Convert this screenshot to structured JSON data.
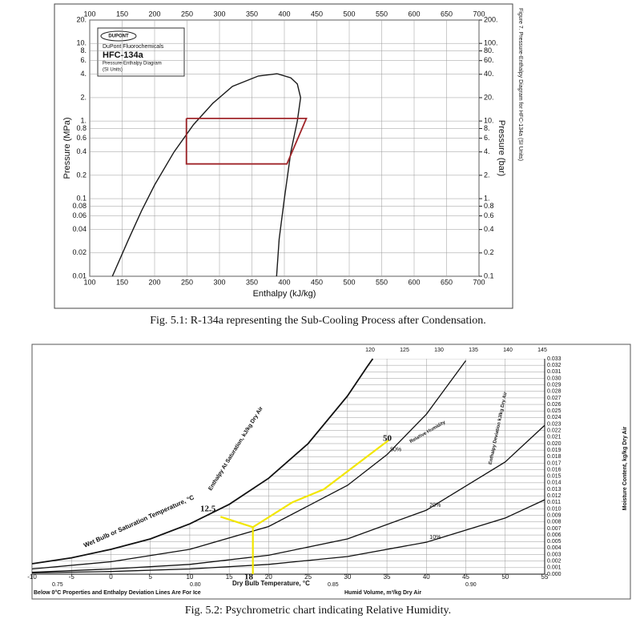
{
  "chart_data": [
    {
      "type": "line",
      "logo": "DUPONT",
      "brand": "DuPont Fluorochemicals",
      "title": "HFC-134a",
      "subtitle": "Pressure-Enthalpy Diagram",
      "units_note": "(SI Units)",
      "side_title": "Figure 7.  Pressure-Enthalpy Diagram for HFC-134a (SI Units)",
      "caption": "Fig. 5.1: R-134a representing the Sub-Cooling Process after Condensation.",
      "xlabel": "Enthalpy (kJ/kg)",
      "ylabel": "Pressure (MPa)",
      "y2label": "Pressure (bar)",
      "xlim": [
        100,
        700
      ],
      "xticks": [
        100,
        150,
        200,
        250,
        300,
        350,
        400,
        450,
        500,
        550,
        600,
        650,
        700
      ],
      "ylim": [
        0.01,
        20
      ],
      "log_y": true,
      "yticks": [
        {
          "value": 20,
          "label": "20."
        },
        {
          "value": 10,
          "label": "10."
        },
        {
          "value": 8,
          "label": "8."
        },
        {
          "value": 6,
          "label": "6."
        },
        {
          "value": 4,
          "label": "4."
        },
        {
          "value": 2,
          "label": "2."
        },
        {
          "value": 1,
          "label": "1."
        },
        0.8,
        0.6,
        0.4,
        0.2,
        0.1,
        0.08,
        0.06,
        0.04,
        0.02,
        0.01
      ],
      "y2lim": [
        0.1,
        200
      ],
      "y2ticks": [
        {
          "value": 200,
          "label": "200."
        },
        {
          "value": 100,
          "label": "100."
        },
        {
          "value": 80,
          "label": "80."
        },
        {
          "value": 60,
          "label": "60."
        },
        {
          "value": 40,
          "label": "40."
        },
        {
          "value": 20,
          "label": "20."
        },
        {
          "value": 10,
          "label": "10."
        },
        {
          "value": 8,
          "label": "8."
        },
        {
          "value": 6,
          "label": "6."
        },
        {
          "value": 4,
          "label": "4."
        },
        {
          "value": 2,
          "label": "2."
        },
        {
          "value": 1,
          "label": "1."
        },
        0.8,
        0.6,
        0.4,
        0.2,
        0.1
      ],
      "grid": true,
      "series": [
        {
          "color": "#1a1a1a",
          "x": [
            135,
            160,
            180,
            200,
            230,
            260,
            290,
            320,
            360,
            389
          ],
          "values": [
            0.01,
            0.03,
            0.07,
            0.15,
            0.4,
            0.9,
            1.7,
            2.8,
            3.8,
            4.06
          ]
        },
        {
          "color": "#1a1a1a",
          "x": [
            389,
            410,
            420,
            425,
            420,
            410,
            400,
            392,
            388
          ],
          "values": [
            4.06,
            3.6,
            3.0,
            2.0,
            1.0,
            0.4,
            0.1,
            0.03,
            0.01
          ]
        },
        {
          "color": "#a0262a",
          "x": [
            249,
            434,
            404,
            249,
            249
          ],
          "values": [
            1.08,
            1.08,
            0.28,
            0.28,
            1.08
          ]
        }
      ]
    },
    {
      "type": "line",
      "caption": "Fig. 5.2: Psychrometric chart indicating Relative Humidity.",
      "xlabel": "Dry Bulb Temperature, °C",
      "ylabel": "Moisture Content, kg/kg Dry Air",
      "note": "Below 0°C Properties and Enthalpy Deviation Lines Are For Ice",
      "volume_label": "Humid Volume, m³/kg Dry Air",
      "volume_ticks": [
        "0.75",
        "0.80",
        "0.85",
        "0.90"
      ],
      "wet_bulb_label": "Wet Bulb or Saturation Temperature, °C",
      "enthalpy_label": "Enthalpy At Saturation, kJ/kg Dry Air",
      "deviation_label": "Enthalpy Deviation kJ/kg Dry Air",
      "rh_label": "Relative Humidity",
      "top_enthalpy_ticks": [
        120,
        125,
        130,
        135,
        140,
        145
      ],
      "xlim": [
        -10,
        55
      ],
      "xticks": [
        -10,
        -5,
        0,
        5,
        10,
        15,
        20,
        25,
        30,
        35,
        40,
        45,
        50,
        55
      ],
      "ylim": [
        0,
        0.033
      ],
      "yticks": [
        {
          "value": 0,
          "label": "0.000"
        },
        {
          "value": 0.001,
          "label": "0.001"
        },
        {
          "value": 0.002,
          "label": "0.002"
        },
        {
          "value": 0.003,
          "label": "0.003"
        },
        {
          "value": 0.004,
          "label": "0.004"
        },
        {
          "value": 0.005,
          "label": "0.005"
        },
        {
          "value": 0.006,
          "label": "0.006"
        },
        {
          "value": 0.007,
          "label": "0.007"
        },
        {
          "value": 0.008,
          "label": "0.008"
        },
        {
          "value": 0.009,
          "label": "0.009"
        },
        {
          "value": 0.01,
          "label": "0.010"
        },
        {
          "value": 0.011,
          "label": "0.011"
        },
        {
          "value": 0.012,
          "label": "0.012"
        },
        {
          "value": 0.013,
          "label": "0.013"
        },
        {
          "value": 0.014,
          "label": "0.014"
        },
        {
          "value": 0.015,
          "label": "0.015"
        },
        {
          "value": 0.016,
          "label": "0.016"
        },
        {
          "value": 0.017,
          "label": "0.017"
        },
        {
          "value": 0.018,
          "label": "0.018"
        },
        {
          "value": 0.019,
          "label": "0.019"
        },
        {
          "value": 0.02,
          "label": "0.020"
        },
        {
          "value": 0.021,
          "label": "0.021"
        },
        {
          "value": 0.022,
          "label": "0.022"
        },
        {
          "value": 0.023,
          "label": "0.023"
        },
        {
          "value": 0.024,
          "label": "0.024"
        },
        {
          "value": 0.025,
          "label": "0.025"
        },
        {
          "value": 0.026,
          "label": "0.026"
        },
        {
          "value": 0.027,
          "label": "0.027"
        },
        {
          "value": 0.028,
          "label": "0.028"
        },
        {
          "value": 0.029,
          "label": "0.029"
        },
        {
          "value": 0.03,
          "label": "0.030"
        },
        {
          "value": 0.031,
          "label": "0.031"
        },
        {
          "value": 0.032,
          "label": "0.032"
        },
        {
          "value": 0.033,
          "label": "0.033"
        }
      ],
      "series": [
        {
          "color": "#111111",
          "x": [
            -10,
            -5,
            0,
            5,
            10,
            15,
            20,
            25,
            30,
            32.5,
            33.2
          ],
          "values": [
            0.0016,
            0.0025,
            0.0038,
            0.0054,
            0.0077,
            0.0107,
            0.0147,
            0.02,
            0.0273,
            0.0318,
            0.033
          ]
        },
        {
          "name": "50%",
          "color": "#111111",
          "x": [
            -10,
            0,
            10,
            20,
            30,
            35,
            40,
            45
          ],
          "values": [
            0.0008,
            0.0019,
            0.0038,
            0.0073,
            0.0136,
            0.0183,
            0.0245,
            0.0327
          ]
        },
        {
          "name": "20%",
          "color": "#111111",
          "x": [
            -10,
            0,
            10,
            20,
            30,
            40,
            50,
            55
          ],
          "values": [
            0.0003,
            0.0008,
            0.0015,
            0.0029,
            0.0054,
            0.0098,
            0.0172,
            0.0228
          ]
        },
        {
          "name": "10%",
          "color": "#111111",
          "x": [
            -10,
            0,
            10,
            20,
            30,
            40,
            50,
            55
          ],
          "values": [
            0.0002,
            0.0004,
            0.0008,
            0.0015,
            0.0027,
            0.0049,
            0.0086,
            0.0114
          ]
        },
        {
          "color": "#f2e600",
          "x": [
            18,
            18,
            23,
            27,
            35.2
          ],
          "values": [
            0,
            0.0072,
            0.011,
            0.013,
            0.0205
          ]
        },
        {
          "color": "#f2e600",
          "x": [
            18,
            13.9
          ],
          "values": [
            0.0072,
            0.0088
          ]
        }
      ],
      "annotations": [
        "12.5",
        "18",
        "50"
      ]
    }
  ]
}
